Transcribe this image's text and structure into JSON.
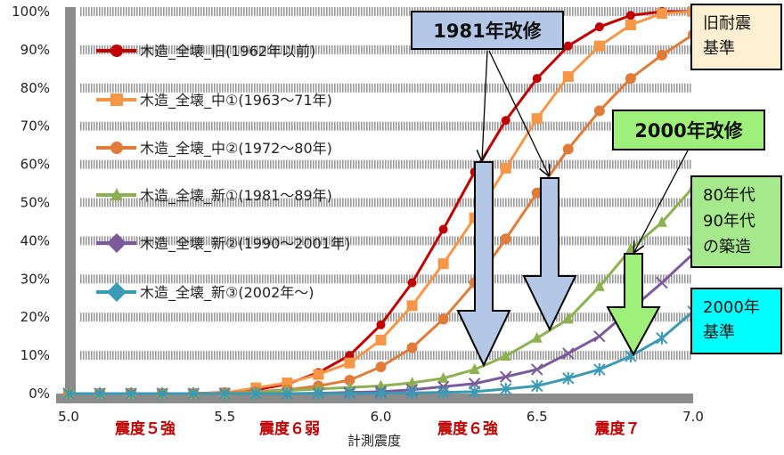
{
  "chart_data": {
    "type": "line",
    "xlabel": "計測震度",
    "ylabel": "",
    "xlim": [
      5.0,
      7.0
    ],
    "ylim": [
      0,
      100
    ],
    "x_ticks": [
      "5.0",
      "5.5",
      "6.0",
      "6.5",
      "7.0"
    ],
    "y_ticks": [
      "0%",
      "10%",
      "20%",
      "30%",
      "40%",
      "50%",
      "60%",
      "70%",
      "80%",
      "90%",
      "100%"
    ],
    "grid": "horizontal hatched bands",
    "legend_placement": "top-left (inside plot)",
    "x": [
      5.0,
      5.1,
      5.2,
      5.3,
      5.4,
      5.5,
      5.6,
      5.7,
      5.8,
      5.9,
      6.0,
      6.1,
      6.2,
      6.3,
      6.4,
      6.5,
      6.6,
      6.7,
      6.8,
      6.9,
      7.0
    ],
    "series": [
      {
        "name": "木造_全壊_旧(1962年以前)",
        "color": "#c00000",
        "marker": "circle",
        "values": [
          0,
          0,
          0,
          0,
          0,
          0.3,
          1,
          2.5,
          5.5,
          10,
          18,
          29,
          43,
          58,
          71.5,
          82.5,
          91,
          96,
          99,
          100,
          100
        ]
      },
      {
        "name": "木造_全壊_中①(1963～71年)",
        "color": "#f79646",
        "marker": "square",
        "values": [
          0,
          0,
          0,
          0,
          0,
          0.2,
          1.5,
          2.8,
          5,
          8,
          14,
          23,
          34,
          46,
          59,
          72,
          83,
          91,
          96.5,
          99.5,
          100
        ]
      },
      {
        "name": "木造_全壊_中②(1972～80年)",
        "color": "#e07b39",
        "marker": "circle",
        "values": [
          0,
          0,
          0,
          0,
          0,
          0.1,
          0.5,
          1,
          2,
          3.5,
          7,
          12,
          19.5,
          29,
          40.5,
          52.5,
          64,
          74,
          82.5,
          88.6,
          94
        ]
      },
      {
        "name": "木造_全壊_新①(1981～89年)",
        "color": "#8db050",
        "marker": "triangle",
        "values": [
          0,
          0,
          0,
          0,
          0,
          0,
          0.3,
          0.8,
          1.2,
          1.6,
          2,
          2.8,
          4,
          6.3,
          9.8,
          14.5,
          19.5,
          28,
          37.8,
          44.8,
          54
        ]
      },
      {
        "name": "木造_全壊_新②(1990～2001年)",
        "color": "#7a5a9b",
        "marker": "x",
        "values": [
          0,
          0,
          0,
          0,
          0,
          0,
          0,
          0,
          0.1,
          0.3,
          0.5,
          1,
          1.8,
          2.6,
          4.4,
          6.3,
          10.5,
          15,
          22,
          29,
          36.6
        ]
      },
      {
        "name": "木造_全壊_新③(2002年～)",
        "color": "#3a9ab4",
        "marker": "asterisk",
        "values": [
          0,
          0,
          0,
          0,
          0,
          0,
          0,
          0,
          0,
          0,
          0.1,
          0.2,
          0.3,
          0.5,
          1.2,
          2,
          4,
          6.3,
          9.8,
          14.5,
          21.5
        ]
      }
    ],
    "intensity_bands": [
      "震度５強",
      "震度６弱",
      "震度６強",
      "震度７"
    ],
    "annotations": {
      "retrofit_1981": "1981年改修",
      "retrofit_2000": "2000年改修",
      "old_standard": [
        "旧耐震",
        "基準"
      ],
      "built_80s_90s": [
        "80年代",
        "90年代",
        "の築造"
      ],
      "standard_2000": [
        "2000年",
        "基準"
      ]
    },
    "annotation_colors": {
      "retrofit_1981": "#b4c7e7",
      "retrofit_2000": "#9ef07a",
      "old_standard": "#fdf0d2",
      "built_80s_90s": "#a6e88c",
      "standard_2000": "#00ffff"
    }
  }
}
